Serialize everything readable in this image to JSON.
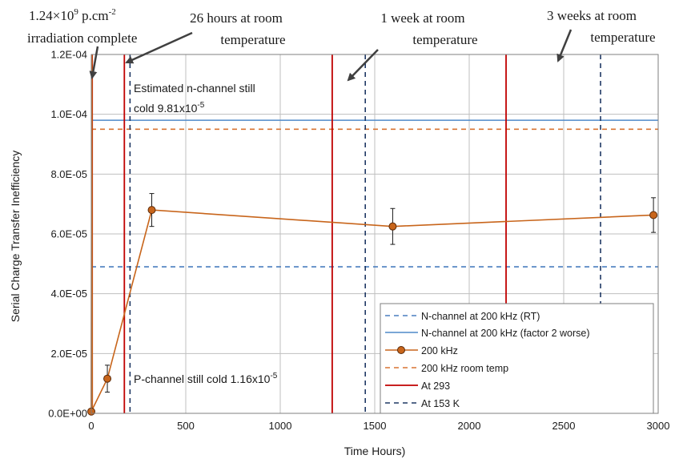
{
  "chart_data": {
    "type": "line",
    "xlabel": "Time Hours)",
    "ylabel": "Serial Charge Transfer Inefficiency",
    "xlim": [
      0,
      3000
    ],
    "ylim": [
      0,
      0.00012
    ],
    "x_ticks": [
      "0",
      "500",
      "1000",
      "1500",
      "2000",
      "2500",
      "3000"
    ],
    "y_ticks": [
      "0.0E+00",
      "2.0E-05",
      "4.0E-05",
      "6.0E-05",
      "8.0E-05",
      "1.0E-04",
      "1.2E-04"
    ],
    "grid": true,
    "legend_position": "bottom-right",
    "colors": {
      "n_rt": "#4a7ebf",
      "n_factor2": "#4f8ac9",
      "series_200khz": "#c8651b",
      "room_temp": "#d87432",
      "at293": "#c00000",
      "at153": "#1f3864"
    },
    "series": [
      {
        "name": "N-channel at 200 kHz (RT)",
        "style": "dashed",
        "constant_y": 4.9e-05
      },
      {
        "name": "N-channel at 200 kHz (factor 2 worse)",
        "style": "solid",
        "constant_y": 9.8e-05
      },
      {
        "name": "200 kHz",
        "style": "line-marker",
        "x": [
          0,
          85,
          320,
          1595,
          2975
        ],
        "y": [
          6e-07,
          1.16e-05,
          6.8e-05,
          6.25e-05,
          6.63e-05
        ],
        "err": [
          0,
          4.5e-06,
          5.5e-06,
          6e-06,
          5.8e-06
        ]
      },
      {
        "name": "200 kHz room temp",
        "style": "dashed",
        "constant_y": 9.5e-05
      },
      {
        "name": "At 293",
        "style": "vertical-solid",
        "x": [
          5,
          175,
          1275,
          2195
        ]
      },
      {
        "name": "At 153 K",
        "style": "vertical-dashed",
        "x": [
          205,
          1450,
          2695
        ]
      }
    ],
    "irradiation_spike": {
      "x": 3,
      "y": 0.00012
    },
    "annotations": {
      "irradiation_line1": "1.24×10",
      "irradiation_line1_sup": "9",
      "irradiation_line1_tail": " p.cm",
      "irradiation_line1_sup2": "-2",
      "irradiation_line2": "irradiation complete",
      "hours26_line1": "26 hours at room",
      "hours26_line2": "temperature",
      "week1_line1": "1 week at room",
      "week1_line2": "temperature",
      "weeks3_line1": "3 weeks at room",
      "weeks3_line2": "temperature",
      "estimated_line1": "Estimated n-channel still",
      "estimated_line2": "cold 9.81x10",
      "estimated_sup": "-5",
      "pchannel": "P-channel still cold 1.16x10",
      "pchannel_sup": "-5"
    }
  }
}
